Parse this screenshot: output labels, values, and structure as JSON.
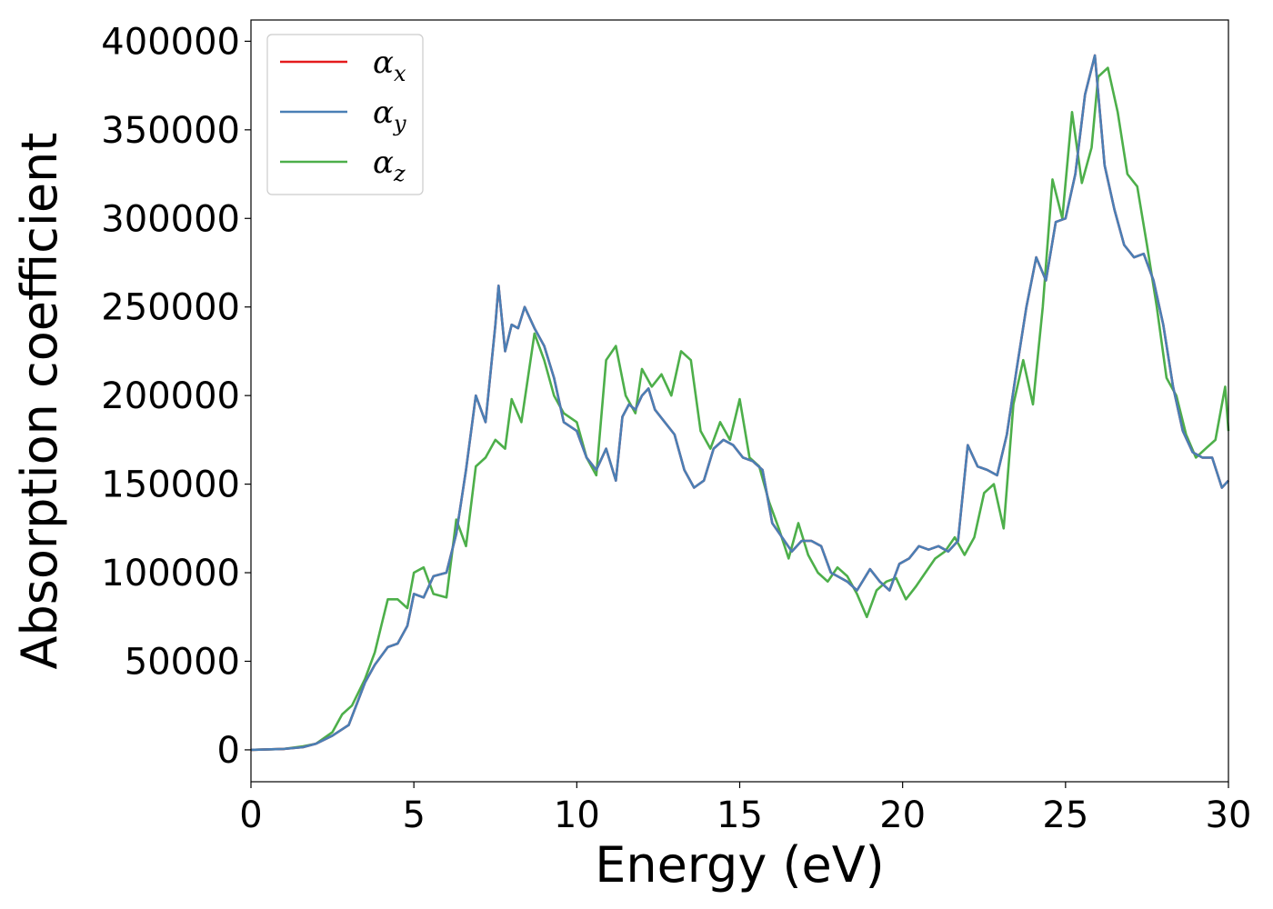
{
  "chart_data": {
    "type": "line",
    "xlabel": "Energy (eV)",
    "ylabel": "Absorption coefficient",
    "xlim": [
      0,
      30
    ],
    "ylim": [
      -18000,
      412000
    ],
    "xticks": [
      0,
      5,
      10,
      15,
      20,
      25,
      30
    ],
    "xtick_labels": [
      "0",
      "5",
      "10",
      "15",
      "20",
      "25",
      "30"
    ],
    "yticks": [
      0,
      50000,
      100000,
      150000,
      200000,
      250000,
      300000,
      350000,
      400000
    ],
    "ytick_labels": [
      "0",
      "50000",
      "100000",
      "150000",
      "200000",
      "250000",
      "300000",
      "350000",
      "400000"
    ],
    "grid": false,
    "legend_position": "top-left",
    "series": [
      {
        "name": "α",
        "subscript": "x",
        "color": "#e41a1c",
        "x": [
          0,
          1,
          1.6,
          2,
          2.5,
          3,
          3.5,
          3.8,
          4.2,
          4.5,
          4.8,
          5,
          5.3,
          5.6,
          6,
          6.3,
          6.6,
          6.9,
          7.2,
          7.5,
          7.6,
          7.8,
          8,
          8.2,
          8.4,
          8.7,
          9,
          9.3,
          9.6,
          10,
          10.3,
          10.6,
          10.9,
          11.2,
          11.4,
          11.6,
          11.8,
          12,
          12.2,
          12.4,
          12.7,
          13,
          13.3,
          13.6,
          13.9,
          14.2,
          14.5,
          14.8,
          15.1,
          15.4,
          15.7,
          16,
          16.3,
          16.6,
          16.9,
          17.2,
          17.5,
          17.8,
          18,
          18.3,
          18.6,
          19,
          19.3,
          19.6,
          19.9,
          20.2,
          20.5,
          20.8,
          21.1,
          21.4,
          21.7,
          22,
          22.3,
          22.6,
          22.9,
          23.2,
          23.5,
          23.8,
          24.1,
          24.4,
          24.7,
          25,
          25.3,
          25.6,
          25.9,
          26.2,
          26.5,
          26.8,
          27.1,
          27.4,
          27.7,
          28,
          28.3,
          28.6,
          28.9,
          29.2,
          29.5,
          29.8,
          30
        ],
        "y": [
          0,
          500,
          1500,
          3500,
          8000,
          14000,
          38000,
          48000,
          58000,
          60000,
          70000,
          88000,
          86000,
          98000,
          100000,
          122000,
          158000,
          200000,
          185000,
          240000,
          262000,
          225000,
          240000,
          238000,
          250000,
          238000,
          228000,
          210000,
          185000,
          180000,
          165000,
          158000,
          170000,
          152000,
          188000,
          195000,
          192000,
          200000,
          204000,
          192000,
          185000,
          178000,
          158000,
          148000,
          152000,
          170000,
          175000,
          172000,
          165000,
          163000,
          158000,
          128000,
          120000,
          112000,
          118000,
          118000,
          115000,
          100000,
          98000,
          95000,
          90000,
          102000,
          95000,
          90000,
          105000,
          108000,
          115000,
          113000,
          115000,
          112000,
          118000,
          172000,
          160000,
          158000,
          155000,
          178000,
          215000,
          250000,
          278000,
          265000,
          298000,
          300000,
          325000,
          370000,
          392000,
          330000,
          305000,
          285000,
          278000,
          280000,
          265000,
          240000,
          205000,
          180000,
          168000,
          165000,
          165000,
          148000,
          152000
        ]
      },
      {
        "name": "α",
        "subscript": "y",
        "color": "#4a7fb5",
        "x": [
          0,
          1,
          1.6,
          2,
          2.5,
          3,
          3.5,
          3.8,
          4.2,
          4.5,
          4.8,
          5,
          5.3,
          5.6,
          6,
          6.3,
          6.6,
          6.9,
          7.2,
          7.5,
          7.6,
          7.8,
          8,
          8.2,
          8.4,
          8.7,
          9,
          9.3,
          9.6,
          10,
          10.3,
          10.6,
          10.9,
          11.2,
          11.4,
          11.6,
          11.8,
          12,
          12.2,
          12.4,
          12.7,
          13,
          13.3,
          13.6,
          13.9,
          14.2,
          14.5,
          14.8,
          15.1,
          15.4,
          15.7,
          16,
          16.3,
          16.6,
          16.9,
          17.2,
          17.5,
          17.8,
          18,
          18.3,
          18.6,
          19,
          19.3,
          19.6,
          19.9,
          20.2,
          20.5,
          20.8,
          21.1,
          21.4,
          21.7,
          22,
          22.3,
          22.6,
          22.9,
          23.2,
          23.5,
          23.8,
          24.1,
          24.4,
          24.7,
          25,
          25.3,
          25.6,
          25.9,
          26.2,
          26.5,
          26.8,
          27.1,
          27.4,
          27.7,
          28,
          28.3,
          28.6,
          28.9,
          29.2,
          29.5,
          29.8,
          30
        ],
        "y": [
          0,
          500,
          1500,
          3500,
          8000,
          14000,
          38000,
          48000,
          58000,
          60000,
          70000,
          88000,
          86000,
          98000,
          100000,
          122000,
          158000,
          200000,
          185000,
          240000,
          262000,
          225000,
          240000,
          238000,
          250000,
          238000,
          228000,
          210000,
          185000,
          180000,
          165000,
          158000,
          170000,
          152000,
          188000,
          195000,
          192000,
          200000,
          204000,
          192000,
          185000,
          178000,
          158000,
          148000,
          152000,
          170000,
          175000,
          172000,
          165000,
          163000,
          158000,
          128000,
          120000,
          112000,
          118000,
          118000,
          115000,
          100000,
          98000,
          95000,
          90000,
          102000,
          95000,
          90000,
          105000,
          108000,
          115000,
          113000,
          115000,
          112000,
          118000,
          172000,
          160000,
          158000,
          155000,
          178000,
          215000,
          250000,
          278000,
          265000,
          298000,
          300000,
          325000,
          370000,
          392000,
          330000,
          305000,
          285000,
          278000,
          280000,
          265000,
          240000,
          205000,
          180000,
          168000,
          165000,
          165000,
          148000,
          152000
        ]
      },
      {
        "name": "α",
        "subscript": "z",
        "color": "#4daf4a",
        "x": [
          0,
          1,
          1.6,
          2,
          2.5,
          2.8,
          3.1,
          3.5,
          3.8,
          4,
          4.2,
          4.5,
          4.8,
          5,
          5.3,
          5.6,
          6,
          6.3,
          6.6,
          6.9,
          7.2,
          7.5,
          7.8,
          8,
          8.3,
          8.7,
          9,
          9.3,
          9.6,
          10,
          10.3,
          10.6,
          10.9,
          11.2,
          11.5,
          11.8,
          12,
          12.3,
          12.6,
          12.9,
          13.2,
          13.5,
          13.8,
          14.1,
          14.4,
          14.7,
          15,
          15.3,
          15.6,
          15.9,
          16.2,
          16.5,
          16.8,
          17.1,
          17.4,
          17.7,
          18,
          18.3,
          18.6,
          18.9,
          19.2,
          19.5,
          19.8,
          20.1,
          20.4,
          20.7,
          21,
          21.3,
          21.6,
          21.9,
          22.2,
          22.5,
          22.8,
          23.1,
          23.4,
          23.7,
          24,
          24.3,
          24.6,
          24.9,
          25.2,
          25.5,
          25.8,
          26,
          26.3,
          26.6,
          26.9,
          27.2,
          27.5,
          27.8,
          28.1,
          28.4,
          28.7,
          29,
          29.3,
          29.6,
          29.9,
          30
        ],
        "y": [
          0,
          500,
          2000,
          3500,
          10000,
          20000,
          25000,
          40000,
          55000,
          70000,
          85000,
          85000,
          80000,
          100000,
          103000,
          88000,
          86000,
          130000,
          115000,
          160000,
          165000,
          175000,
          170000,
          198000,
          185000,
          235000,
          220000,
          200000,
          190000,
          185000,
          165000,
          155000,
          220000,
          228000,
          200000,
          190000,
          215000,
          205000,
          212000,
          200000,
          225000,
          220000,
          180000,
          170000,
          185000,
          175000,
          198000,
          165000,
          160000,
          140000,
          125000,
          108000,
          128000,
          110000,
          100000,
          95000,
          103000,
          98000,
          88000,
          75000,
          90000,
          95000,
          97000,
          85000,
          92000,
          100000,
          108000,
          112000,
          120000,
          110000,
          120000,
          145000,
          150000,
          125000,
          195000,
          220000,
          195000,
          250000,
          322000,
          300000,
          360000,
          320000,
          340000,
          380000,
          385000,
          360000,
          325000,
          318000,
          285000,
          250000,
          210000,
          200000,
          178000,
          165000,
          170000,
          175000,
          205000,
          180000
        ]
      }
    ]
  }
}
